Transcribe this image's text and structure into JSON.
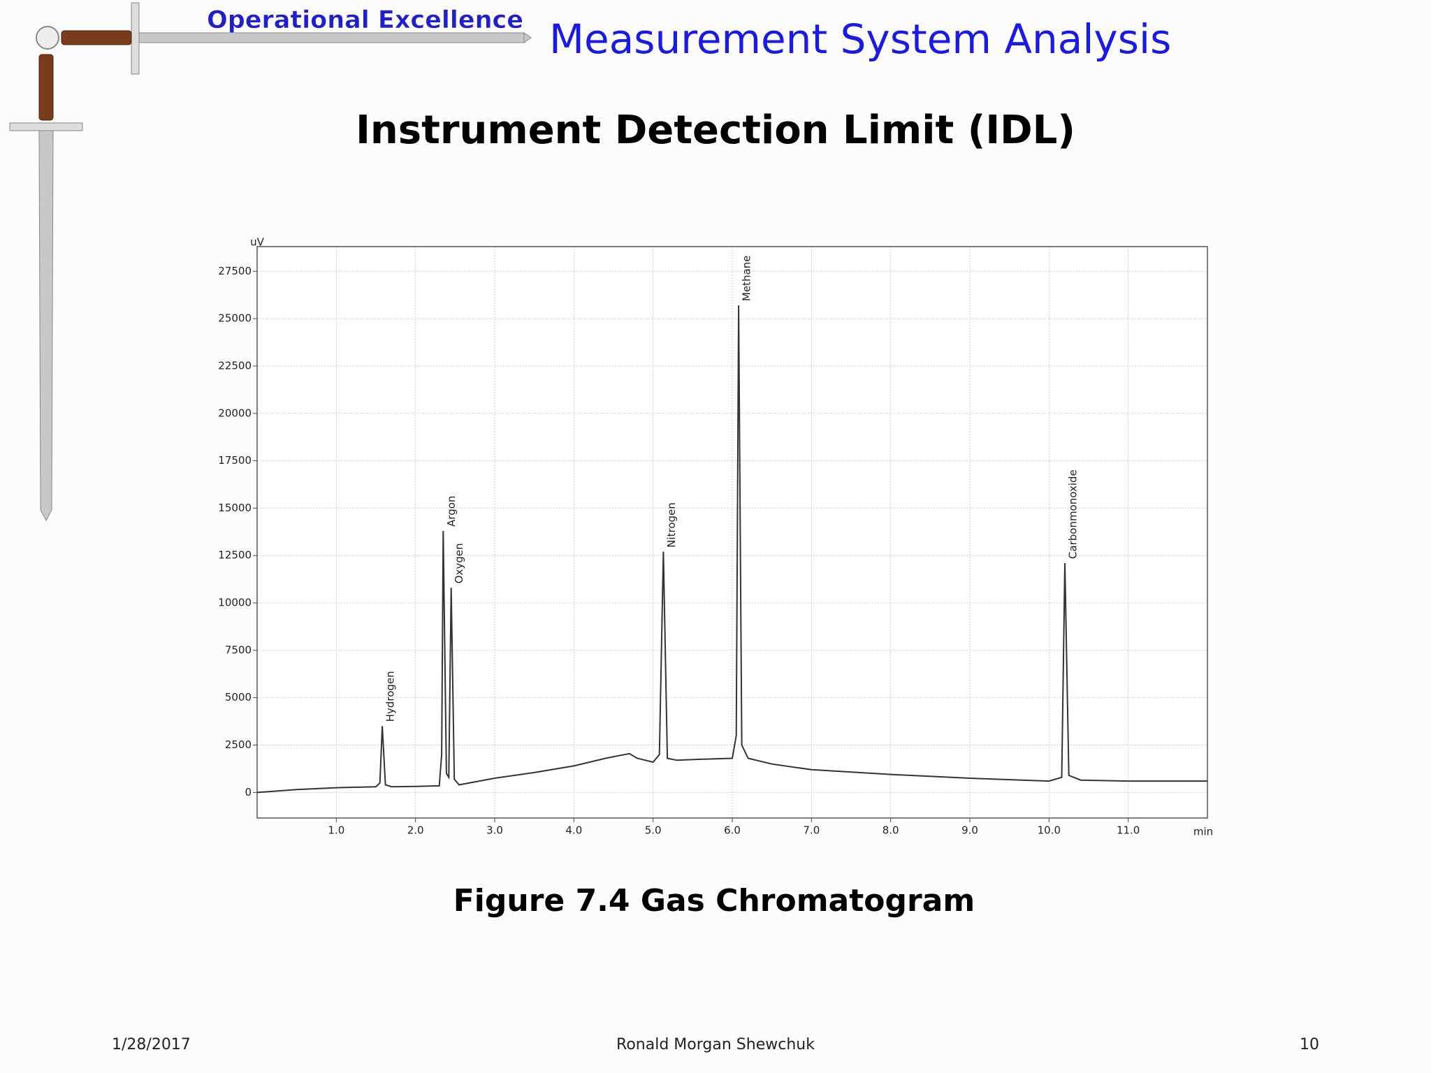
{
  "header": {
    "brand": "Operational Excellence",
    "course": "Measurement System Analysis"
  },
  "slide_title": "Instrument Detection Limit (IDL)",
  "chart_data": {
    "type": "line",
    "x_label": "min",
    "y_label": "uV",
    "x": [
      0,
      0.5,
      1.0,
      1.5,
      1.55,
      1.58,
      1.62,
      1.7,
      2.0,
      2.3,
      2.33,
      2.35,
      2.39,
      2.42,
      2.45,
      2.49,
      2.55,
      3.0,
      3.5,
      4.0,
      4.4,
      4.7,
      4.8,
      5.0,
      5.08,
      5.13,
      5.18,
      5.3,
      5.6,
      6.0,
      6.05,
      6.08,
      6.12,
      6.2,
      6.5,
      7.0,
      8.0,
      9.0,
      10.0,
      10.16,
      10.2,
      10.25,
      10.4,
      11.0,
      12.0
    ],
    "values": [
      0,
      150,
      250,
      300,
      500,
      3500,
      400,
      300,
      320,
      350,
      2000,
      13800,
      1000,
      800,
      10800,
      700,
      400,
      750,
      1050,
      1400,
      1800,
      2050,
      1800,
      1600,
      2000,
      12700,
      1800,
      1700,
      1750,
      1800,
      3000,
      25700,
      2500,
      1800,
      1500,
      1200,
      950,
      750,
      600,
      800,
      12100,
      900,
      650,
      600,
      600
    ],
    "color": "#333333",
    "annotations": [
      "Hydrogen",
      "Argon",
      "Oxygen",
      "Nitrogen",
      "Methane",
      "Carbonmonoxide"
    ],
    "xlim": [
      0,
      12
    ],
    "ylim": [
      -1350,
      28800
    ],
    "xticks": [
      {
        "value": 1,
        "label": "1.0"
      },
      {
        "value": 2,
        "label": "2.0"
      },
      {
        "value": 3,
        "label": "3.0"
      },
      {
        "value": 4,
        "label": "4.0"
      },
      {
        "value": 5,
        "label": "5.0"
      },
      {
        "value": 6,
        "label": "6.0"
      },
      {
        "value": 7,
        "label": "7.0"
      },
      {
        "value": 8,
        "label": "8.0"
      },
      {
        "value": 9,
        "label": "9.0"
      },
      {
        "value": 10,
        "label": "10.0"
      },
      {
        "value": 11,
        "label": "11.0"
      }
    ],
    "yticks": [
      0,
      2500,
      5000,
      7500,
      10000,
      12500,
      15000,
      17500,
      20000,
      22500,
      25000,
      27500
    ],
    "grid": true
  },
  "caption": "Figure 7.4  Gas Chromatogram",
  "footer": {
    "date": "1/28/2017",
    "author": "Ronald Morgan Shewchuk",
    "page": "10"
  }
}
